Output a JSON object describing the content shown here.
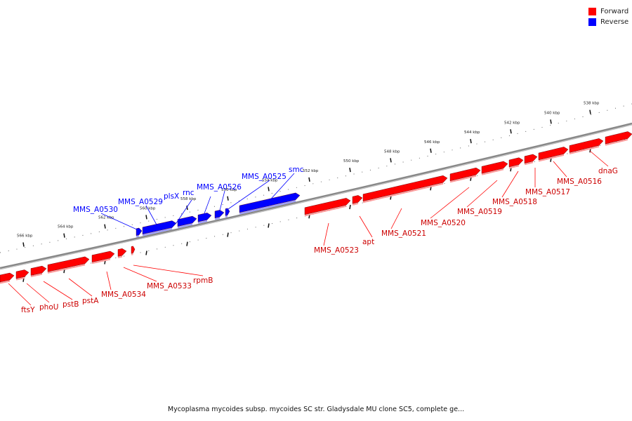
{
  "legend": {
    "forward": {
      "label": "Forward",
      "color": "#ff0000"
    },
    "reverse": {
      "label": "Reverse",
      "color": "#0000ff"
    }
  },
  "caption": "Mycoplasma mycoides subsp. mycoides SC str. Gladysdale MU clone SC5, complete ge...",
  "ticks": [
    "566 kbp",
    "564 kbp",
    "562 kbp",
    "560 kbp",
    "558 kbp",
    "556 kbp",
    "554 kbp",
    "552 kbp",
    "550 kbp",
    "548 kbp",
    "546 kbp",
    "544 kbp",
    "542 kbp",
    "540 kbp",
    "538 kbp"
  ],
  "reverse_genes": [
    "MMS_A0530",
    "MMS_A0529",
    "plsX",
    "rnc",
    "MMS_A0526",
    "MMS_A0525",
    "smc"
  ],
  "forward_genes": [
    "ftsY",
    "phoU",
    "pstB",
    "pstA",
    "MMS_A0534",
    "MMS_A0533",
    "rpmB",
    "MMS_A0523",
    "apt",
    "MMS_A0521",
    "MMS_A0520",
    "MMS_A0519",
    "MMS_A0518",
    "MMS_A0517",
    "MMS_A0516",
    "dnaG"
  ]
}
